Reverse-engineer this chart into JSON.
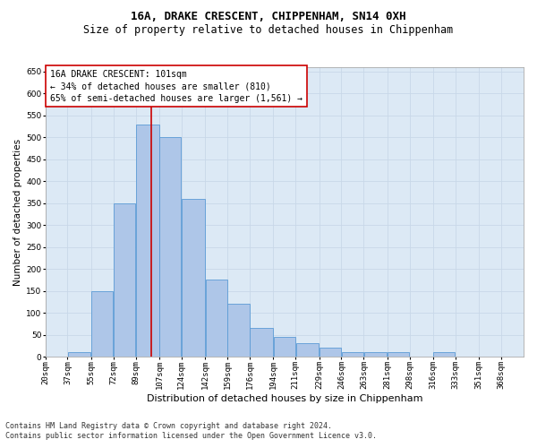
{
  "title": "16A, DRAKE CRESCENT, CHIPPENHAM, SN14 0XH",
  "subtitle": "Size of property relative to detached houses in Chippenham",
  "xlabel": "Distribution of detached houses by size in Chippenham",
  "ylabel": "Number of detached properties",
  "footnote1": "Contains HM Land Registry data © Crown copyright and database right 2024.",
  "footnote2": "Contains public sector information licensed under the Open Government Licence v3.0.",
  "annotation_line1": "16A DRAKE CRESCENT: 101sqm",
  "annotation_line2": "← 34% of detached houses are smaller (810)",
  "annotation_line3": "65% of semi-detached houses are larger (1,561) →",
  "property_sqm": 101,
  "bar_left_edges": [
    20,
    37,
    55,
    72,
    89,
    107,
    124,
    142,
    159,
    176,
    194,
    211,
    229,
    246,
    263,
    281,
    298,
    316,
    333,
    351
  ],
  "bar_widths": [
    17,
    18,
    17,
    17,
    18,
    17,
    18,
    17,
    17,
    18,
    17,
    18,
    17,
    17,
    18,
    17,
    18,
    17,
    18,
    17
  ],
  "bar_heights": [
    0,
    10,
    150,
    350,
    530,
    500,
    360,
    175,
    120,
    65,
    45,
    30,
    20,
    10,
    10,
    10,
    0,
    10,
    0,
    0
  ],
  "tick_labels": [
    "20sqm",
    "37sqm",
    "55sqm",
    "72sqm",
    "89sqm",
    "107sqm",
    "124sqm",
    "142sqm",
    "159sqm",
    "176sqm",
    "194sqm",
    "211sqm",
    "229sqm",
    "246sqm",
    "263sqm",
    "281sqm",
    "298sqm",
    "316sqm",
    "333sqm",
    "351sqm",
    "368sqm"
  ],
  "ylim": [
    0,
    660
  ],
  "yticks": [
    0,
    50,
    100,
    150,
    200,
    250,
    300,
    350,
    400,
    450,
    500,
    550,
    600,
    650
  ],
  "bar_color": "#aec6e8",
  "bar_edge_color": "#5b9bd5",
  "grid_color": "#c8d8e8",
  "background_color": "#dce9f5",
  "vline_color": "#cc0000",
  "annotation_box_color": "#ffffff",
  "annotation_box_edge": "#cc0000",
  "title_fontsize": 9,
  "subtitle_fontsize": 8.5,
  "xlabel_fontsize": 8,
  "ylabel_fontsize": 7.5,
  "tick_fontsize": 6.5,
  "annotation_fontsize": 7,
  "footnote_fontsize": 6
}
